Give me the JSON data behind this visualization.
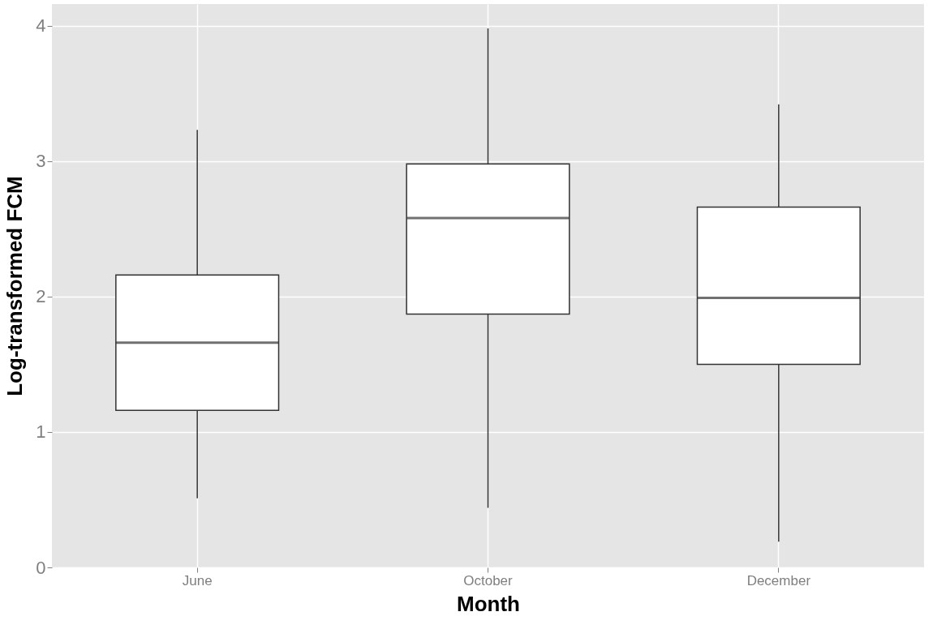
{
  "chart_data": {
    "type": "box",
    "xlabel": "Month",
    "ylabel": "Log-transformed FCM",
    "categories": [
      "June",
      "October",
      "December"
    ],
    "boxes": [
      {
        "low": 0.51,
        "q1": 1.16,
        "median": 1.66,
        "q3": 2.16,
        "high": 3.23
      },
      {
        "low": 0.44,
        "q1": 1.87,
        "median": 2.58,
        "q3": 2.98,
        "high": 3.98
      },
      {
        "low": 0.19,
        "q1": 1.5,
        "median": 1.99,
        "q3": 2.66,
        "high": 3.42
      }
    ],
    "color": "#ffffff",
    "ylim": [
      0,
      4.16
    ],
    "yticks": [
      0,
      1,
      2,
      3,
      4
    ],
    "grid": true
  }
}
